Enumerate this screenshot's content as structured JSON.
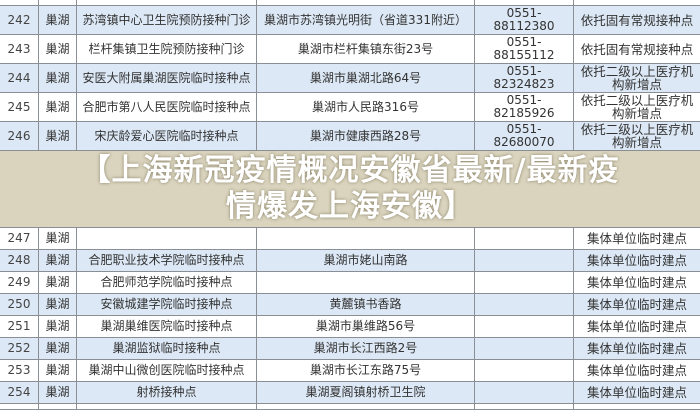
{
  "table": {
    "rows": [
      {
        "no": "",
        "district": "",
        "name": "",
        "address": "",
        "phone": "",
        "type": ""
      },
      {
        "no": "242",
        "district": "巢湖",
        "name": "苏湾镇中心卫生院预防接种门诊",
        "address": "巢湖市苏湾镇光明街（省道331附近）",
        "phone": "0551-88112380",
        "type": "依托固有常规接种点"
      },
      {
        "no": "243",
        "district": "巢湖",
        "name": "栏杆集镇卫生院预防接种门诊",
        "address": "巢湖市栏杆集镇东街23号",
        "phone": "0551-88155112",
        "type": "依托固有常规接种点"
      },
      {
        "no": "244",
        "district": "巢湖",
        "name": "安医大附属巢湖医院临时接种点",
        "address": "巢湖市巢湖北路64号",
        "phone": "0551-82324823",
        "type": "依托二级以上医疗机构新增点"
      },
      {
        "no": "245",
        "district": "巢湖",
        "name": "合肥市第八人民医院临时接种点",
        "address": "巢湖市人民路316号",
        "phone": "0551-82185926",
        "type": "依托二级以上医疗机构新增点"
      },
      {
        "no": "246",
        "district": "巢湖",
        "name": "宋庆龄爱心医院临时接种点",
        "address": "巢湖市健康西路28号",
        "phone": "0551-82680070",
        "type": "依托二级以上医疗机构新增点"
      },
      {
        "no": "247",
        "district": "巢湖",
        "name": "",
        "address": "",
        "phone": "",
        "type": "集体单位临时建点"
      },
      {
        "no": "248",
        "district": "巢湖",
        "name": "合肥职业技术学院临时接种点",
        "address": "巢湖市姥山南路",
        "phone": "",
        "type": "集体单位临时建点"
      },
      {
        "no": "249",
        "district": "巢湖",
        "name": "合肥师范学院临时接种点",
        "address": "",
        "phone": "",
        "type": "集体单位临时建点"
      },
      {
        "no": "250",
        "district": "巢湖",
        "name": "安徽城建学院临时接种点",
        "address": "黄麓镇书香路",
        "phone": "",
        "type": "集体单位临时建点"
      },
      {
        "no": "251",
        "district": "巢湖",
        "name": "巢湖巢维医院临时接种点",
        "address": "巢湖市巢维路56号",
        "phone": "",
        "type": "集体单位临时建点"
      },
      {
        "no": "252",
        "district": "巢湖",
        "name": "巢湖监狱临时接种点",
        "address": "巢湖市长江西路2号",
        "phone": "",
        "type": "集体单位临时建点"
      },
      {
        "no": "253",
        "district": "巢湖",
        "name": "巢湖中山微创医院临时接种点",
        "address": "巢湖市长江东路75号",
        "phone": "",
        "type": "集体单位临时建点"
      },
      {
        "no": "254",
        "district": "巢湖",
        "name": "射桥接种点",
        "address": "巢湖夏阁镇射桥卫生院",
        "phone": "",
        "type": "集体单位临时建点"
      },
      {
        "no": "",
        "district": "",
        "name": "",
        "address": "",
        "phone": "",
        "type": ""
      }
    ]
  },
  "overlay_title": {
    "line1": "【上海新冠疫情概况安徽省最新/最新疫",
    "line2": "情爆发上海安徽】"
  },
  "colors": {
    "row_blue": "#dce8f5",
    "row_white": "#ffffff",
    "overlay": "#c4ba96"
  }
}
